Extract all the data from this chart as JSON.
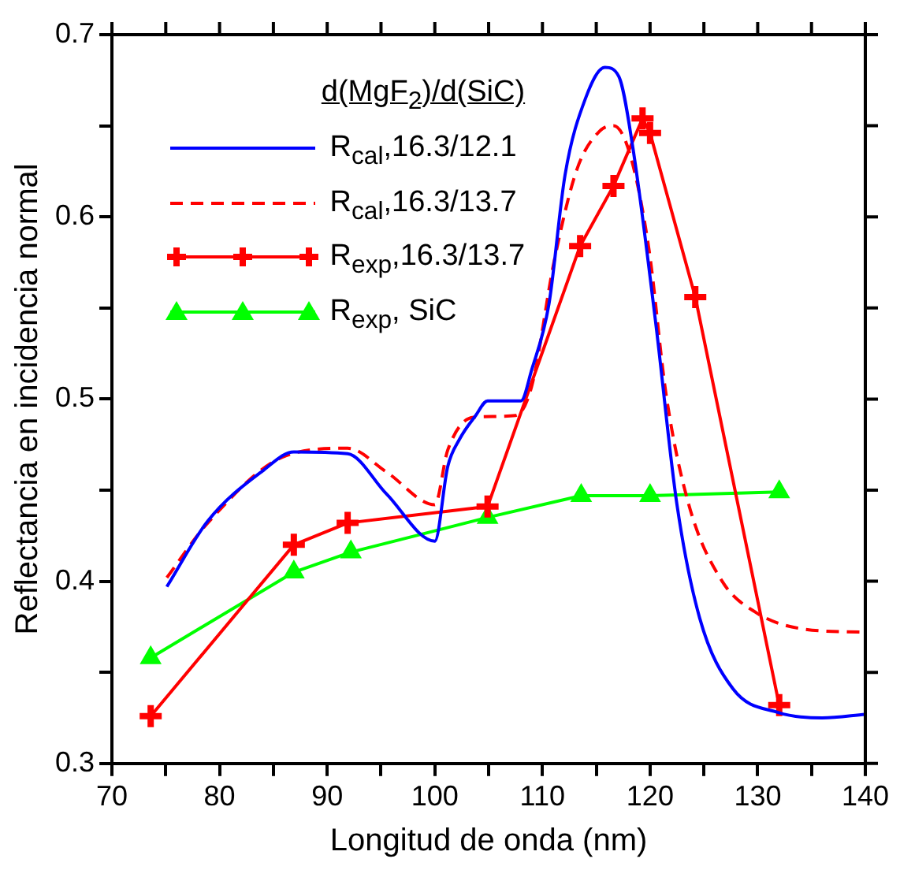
{
  "chart_data": {
    "type": "line",
    "xlabel": "Longitud de onda (nm)",
    "ylabel": "Reflectancia en incidencia normal",
    "legend_title": "d(MgF$_{2}$)/d(SiC)",
    "legend": "top left",
    "grid": false,
    "xlim": [
      70,
      140
    ],
    "xticks": [
      70,
      {
        "value": 75,
        "label": null
      },
      80,
      {
        "value": 85,
        "label": null
      },
      90,
      {
        "value": 95,
        "label": null
      },
      100,
      {
        "value": 105,
        "label": null
      },
      110,
      {
        "value": 115,
        "label": null
      },
      120,
      {
        "value": 125,
        "label": null
      },
      130,
      {
        "value": 135,
        "label": null
      },
      140
    ],
    "ylim": [
      0.3,
      0.7
    ],
    "yticks": [
      0.3,
      {
        "value": 0.35,
        "label": null
      },
      0.4,
      {
        "value": 0.45,
        "label": null
      },
      0.5,
      {
        "value": 0.55,
        "label": null
      },
      0.6,
      {
        "value": 0.65,
        "label": null
      },
      0.7
    ],
    "series": [
      {
        "name": "R$_{cal}$,16.3/12.1",
        "color": "#0000ff",
        "marker": "none",
        "line_style": "solid",
        "x": [
          75.1,
          78.9,
          84.1,
          86.9,
          91.9,
          95.5,
          100.0,
          101.2,
          102.3,
          103.8,
          104.9,
          108.0,
          109.0,
          110.6,
          112.1,
          114.0,
          115.8,
          117.1,
          118.4,
          120.5,
          122.5,
          124.6,
          127.7,
          131.9,
          136.0,
          140
        ],
        "values": [
          0.397,
          0.433,
          0.461,
          0.471,
          0.47,
          0.448,
          0.422,
          0.463,
          0.478,
          0.491,
          0.499,
          0.499,
          0.516,
          0.552,
          0.623,
          0.665,
          0.682,
          0.677,
          0.638,
          0.543,
          0.442,
          0.38,
          0.341,
          0.328,
          0.325,
          0.327
        ]
      },
      {
        "name": "R$_{cal}$,16.3/13.7",
        "color": "#ff0000",
        "marker": "none",
        "line_style": "dashed",
        "x": [
          75.1,
          78.9,
          86.2,
          91.9,
          95.5,
          100.0,
          101.2,
          103.6,
          107.5,
          109.0,
          111.1,
          113.2,
          115.3,
          116.6,
          118.1,
          119.9,
          121.5,
          123.6,
          126.7,
          129.8,
          134.0,
          140
        ],
        "values": [
          0.402,
          0.432,
          0.469,
          0.473,
          0.46,
          0.442,
          0.472,
          0.49,
          0.491,
          0.507,
          0.576,
          0.626,
          0.647,
          0.65,
          0.635,
          0.582,
          0.502,
          0.442,
          0.4,
          0.383,
          0.374,
          0.372
        ]
      },
      {
        "name": "R$_{exp}$,16.3/13.7",
        "color": "#ff0000",
        "marker": "cross",
        "line_style": "solid",
        "x": [
          73.6,
          86.9,
          91.9,
          104.9,
          113.5,
          116.6,
          119.3,
          120.0,
          124.2,
          132.0
        ],
        "values": [
          0.326,
          0.42,
          0.432,
          0.441,
          0.584,
          0.617,
          0.654,
          0.646,
          0.556,
          0.332
        ]
      },
      {
        "name": "R$_{exp}$, SiC",
        "color": "#00ff00",
        "marker": "triangle",
        "line_style": "solid",
        "x": [
          73.6,
          86.9,
          92.2,
          104.9,
          113.6,
          120.0,
          132.0
        ],
        "values": [
          0.358,
          0.405,
          0.416,
          0.435,
          0.447,
          0.447,
          0.449
        ]
      }
    ]
  }
}
